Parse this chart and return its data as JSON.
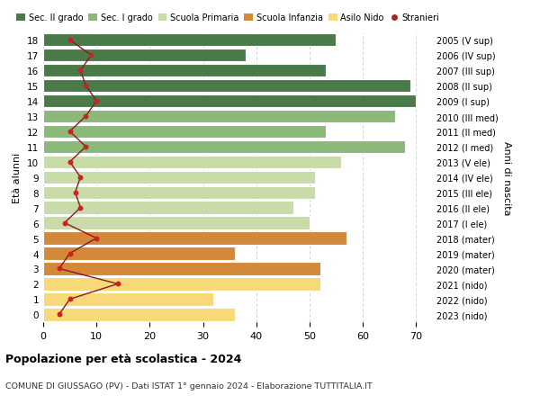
{
  "ages": [
    0,
    1,
    2,
    3,
    4,
    5,
    6,
    7,
    8,
    9,
    10,
    11,
    12,
    13,
    14,
    15,
    16,
    17,
    18
  ],
  "right_labels": [
    "2023 (nido)",
    "2022 (nido)",
    "2021 (nido)",
    "2020 (mater)",
    "2019 (mater)",
    "2018 (mater)",
    "2017 (I ele)",
    "2016 (II ele)",
    "2015 (III ele)",
    "2014 (IV ele)",
    "2013 (V ele)",
    "2012 (I med)",
    "2011 (II med)",
    "2010 (III med)",
    "2009 (I sup)",
    "2008 (II sup)",
    "2007 (III sup)",
    "2006 (IV sup)",
    "2005 (V sup)"
  ],
  "bar_values": [
    36,
    32,
    52,
    52,
    36,
    57,
    50,
    47,
    51,
    51,
    56,
    68,
    53,
    66,
    70,
    69,
    53,
    38,
    55
  ],
  "bar_colors": [
    "#f7d97a",
    "#f7d97a",
    "#f7d97a",
    "#d4883a",
    "#d4883a",
    "#d4883a",
    "#c8dba8",
    "#c8dba8",
    "#c8dba8",
    "#c8dba8",
    "#c8dba8",
    "#8cb87a",
    "#8cb87a",
    "#8cb87a",
    "#4a7a4a",
    "#4a7a4a",
    "#4a7a4a",
    "#4a7a4a",
    "#4a7a4a"
  ],
  "stranieri_values": [
    3,
    5,
    14,
    3,
    5,
    10,
    4,
    7,
    6,
    7,
    5,
    8,
    5,
    8,
    10,
    8,
    7,
    9,
    5
  ],
  "legend_labels": [
    "Sec. II grado",
    "Sec. I grado",
    "Scuola Primaria",
    "Scuola Infanzia",
    "Asilo Nido",
    "Stranieri"
  ],
  "legend_colors": [
    "#4a7a4a",
    "#8cb87a",
    "#c8dba8",
    "#d4883a",
    "#f7d97a",
    "#aa2222"
  ],
  "title_bold": "Popolazione per età scolastica - 2024",
  "title_sub": "COMUNE DI GIUSSAGO (PV) - Dati ISTAT 1° gennaio 2024 - Elaborazione TUTTITALIA.IT",
  "ylabel": "Età alunni",
  "right_ylabel": "Anni di nascita",
  "xlim": [
    0,
    73
  ],
  "xticks": [
    0,
    10,
    20,
    30,
    40,
    50,
    60,
    70
  ],
  "bg_color": "#ffffff",
  "grid_color": "#cccccc",
  "line_color": "#8b1a1a",
  "dot_color": "#cc2222"
}
